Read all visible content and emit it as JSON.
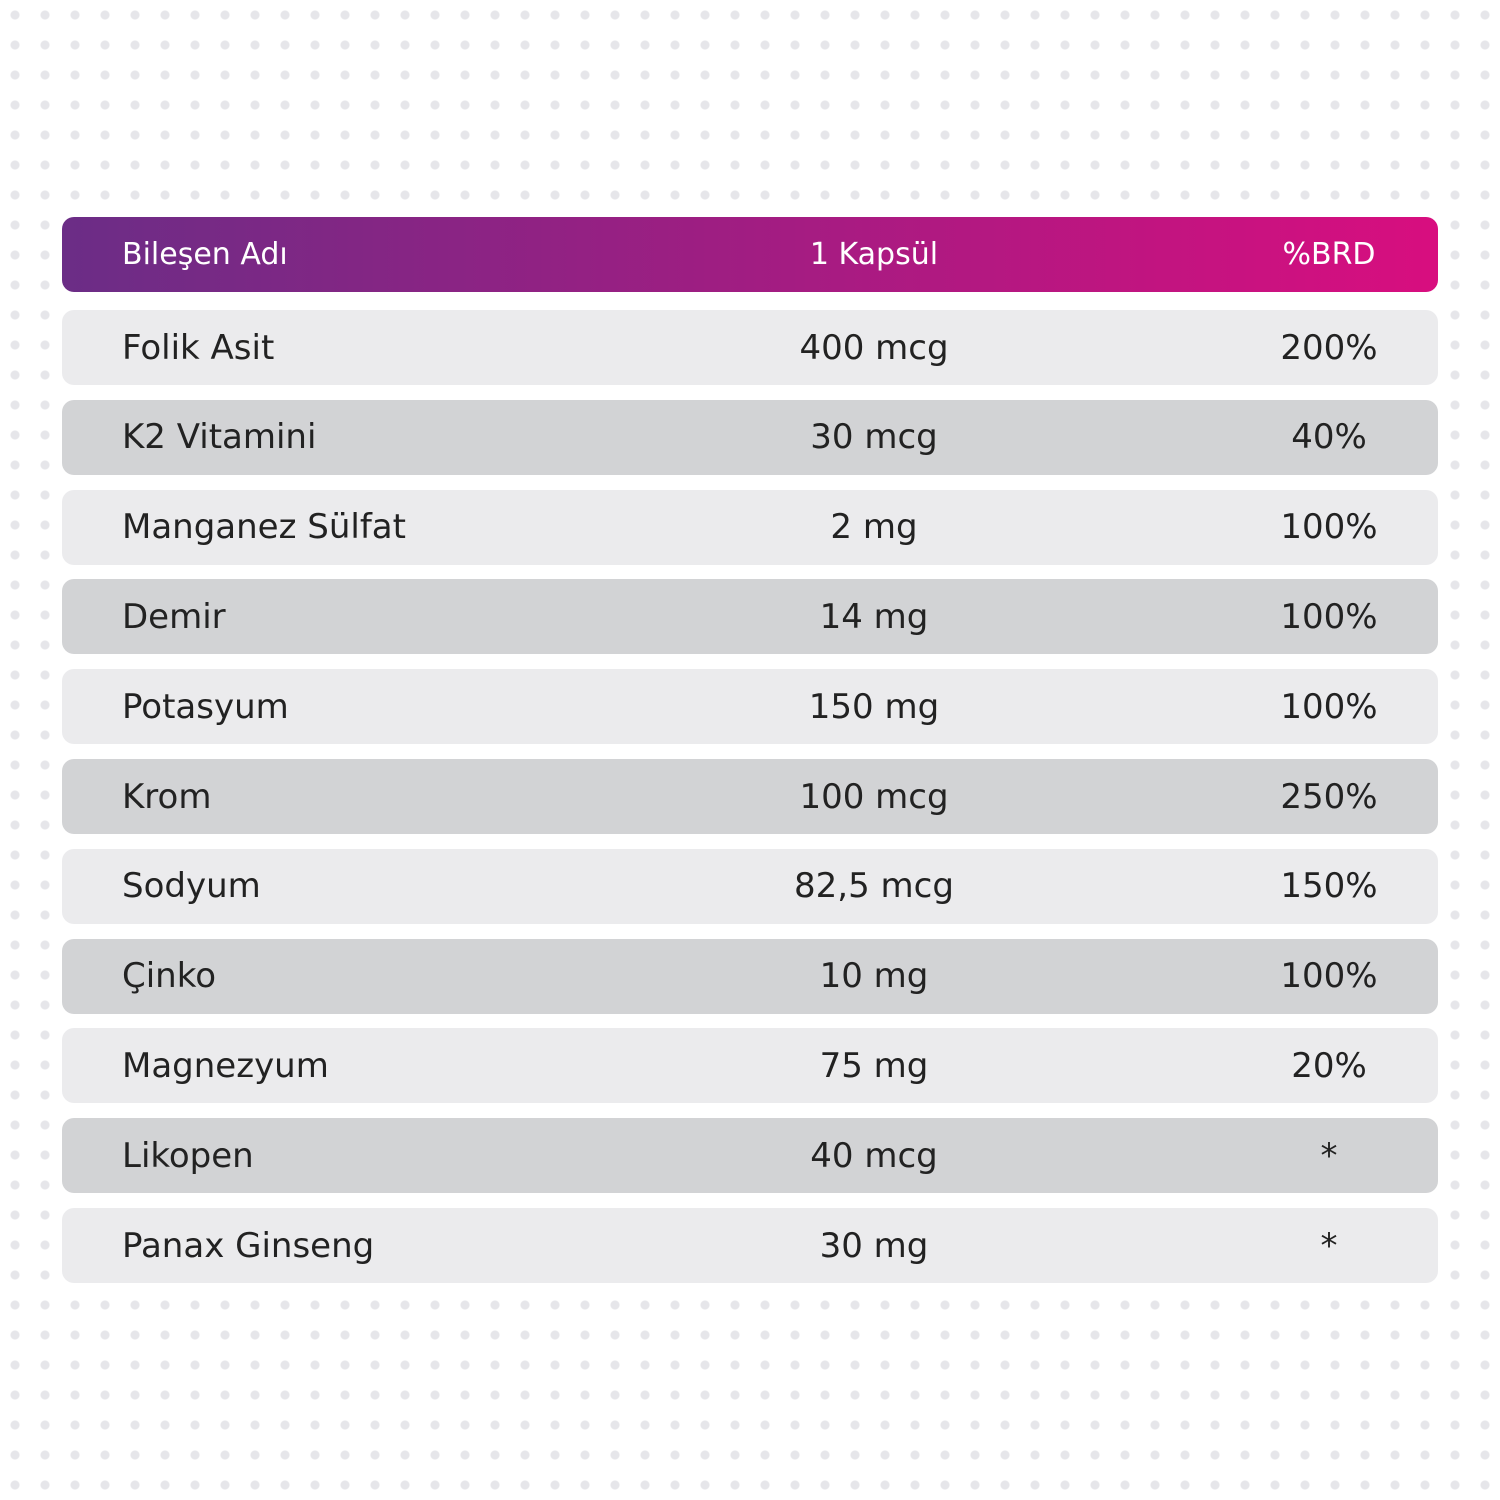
{
  "table": {
    "header": [
      "Bileşen Adı",
      "1 Kapsül",
      "%BRD"
    ],
    "rows": [
      [
        "Folik Asit",
        "400 mcg",
        "200%"
      ],
      [
        "K2 Vitamini",
        "30 mcg",
        "40%"
      ],
      [
        "Manganez Sülfat",
        "2 mg",
        "100%"
      ],
      [
        "Demir",
        "14 mg",
        "100%"
      ],
      [
        "Potasyum",
        "150 mg",
        "100%"
      ],
      [
        "Krom",
        "100 mcg",
        "250%"
      ],
      [
        "Sodyum",
        "82,5 mcg",
        "150%"
      ],
      [
        "Çinko",
        "10 mg",
        "100%"
      ],
      [
        "Magnezyum",
        "75 mg",
        "20%"
      ],
      [
        "Likopen",
        "40 mcg",
        "*"
      ],
      [
        "Panax Ginseng",
        "30 mg",
        "*"
      ]
    ]
  }
}
